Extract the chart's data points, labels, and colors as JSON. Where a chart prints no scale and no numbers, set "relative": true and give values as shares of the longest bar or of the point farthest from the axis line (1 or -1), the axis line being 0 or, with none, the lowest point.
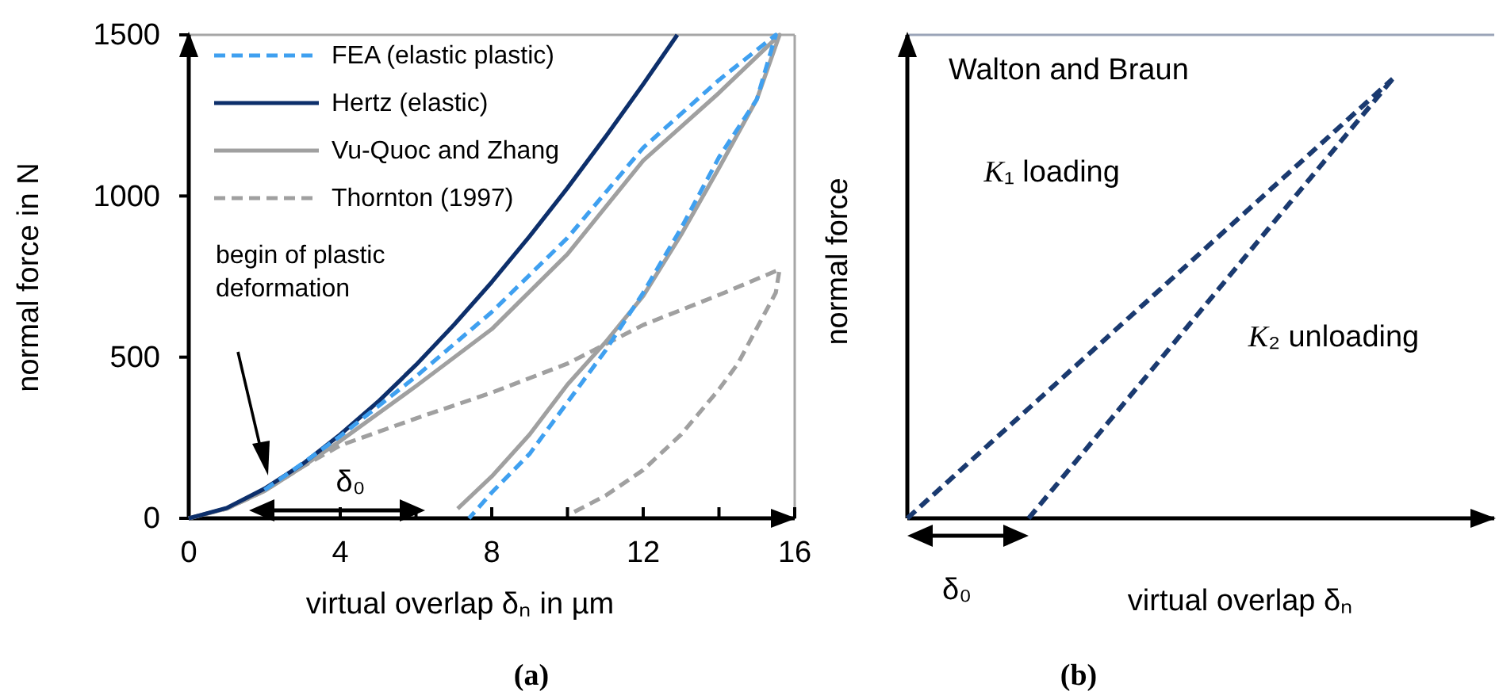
{
  "chart_data": [
    {
      "type": "line",
      "xlabel": "virtual overlap δₙ in µm",
      "ylabel": "normal force in N",
      "xlim": [
        0,
        16
      ],
      "ylim": [
        0,
        1500
      ],
      "xticks": [
        0,
        {
          "value": 2,
          "label": null
        },
        4,
        {
          "value": 6,
          "label": null
        },
        8,
        {
          "value": 10,
          "label": null
        },
        12,
        {
          "value": 14,
          "label": null
        },
        16
      ],
      "yticks": [
        0,
        500,
        1000,
        1500
      ],
      "grid": false,
      "legend": "top left",
      "marker": "none",
      "series": [
        {
          "name": "FEA (elastic plastic)",
          "color": "#3fa0f0",
          "line_style": "dashed",
          "x": [
            2,
            3,
            4,
            6,
            8,
            10,
            12,
            14,
            15.5,
            15,
            14,
            13,
            12,
            11,
            10,
            9,
            8,
            7.4
          ],
          "values": [
            88,
            170,
            255,
            440,
            640,
            870,
            1150,
            1360,
            1500,
            1300,
            1120,
            900,
            700,
            520,
            360,
            200,
            80,
            0
          ]
        },
        {
          "name": "Hertz (elastic)",
          "color": "#0d2f6b",
          "line_style": "solid",
          "x": [
            0,
            1,
            2,
            3,
            4,
            5,
            6,
            7,
            8,
            9,
            10,
            11,
            12,
            12.9
          ],
          "values": [
            0,
            32,
            92,
            168,
            260,
            362,
            476,
            600,
            733,
            875,
            1025,
            1183,
            1347,
            1500
          ]
        },
        {
          "name": "Vu-Quoc and Zhang",
          "color": "#a0a0a0",
          "line_style": "solid",
          "x": [
            0,
            1,
            2,
            3,
            4,
            6,
            8,
            10,
            12,
            14,
            15.6,
            15,
            14,
            13,
            12,
            11,
            10,
            9,
            8,
            7.1
          ],
          "values": [
            0,
            30,
            85,
            160,
            240,
            410,
            587,
            820,
            1110,
            1320,
            1500,
            1300,
            1087,
            880,
            690,
            546,
            415,
            260,
            130,
            30
          ]
        },
        {
          "name": "Thornton (1997)",
          "color": "#a0a0a0",
          "line_style": "dashed",
          "x": [
            0,
            1,
            2,
            3,
            4,
            6,
            8,
            10,
            12,
            14,
            15.6,
            15.5,
            15,
            14.5,
            14,
            13,
            12,
            11,
            10.1
          ],
          "values": [
            0,
            30,
            85,
            160,
            226,
            310,
            390,
            480,
            600,
            693,
            772,
            700,
            590,
            480,
            400,
            260,
            150,
            70,
            15
          ]
        }
      ],
      "annotations": [
        "begin of plastic deformation",
        "δ₀",
        "(a)"
      ]
    },
    {
      "type": "line",
      "relative": true,
      "title": "Walton and Braun",
      "xlabel": "virtual overlap δₙ",
      "ylabel": "normal force",
      "tick_labels": false,
      "grid": false,
      "legend": false,
      "marker": "none",
      "categories": [
        null,
        null,
        null,
        null,
        null
      ],
      "series": [
        {
          "color": "#1a3a70",
          "line_style": "dashed",
          "values": [
            0,
            0.25,
            0.5,
            0.75,
            1
          ]
        },
        {
          "color": "#1a3a70",
          "line_style": "dashed",
          "values": [
            null,
            0,
            0.333,
            0.667,
            1
          ]
        }
      ],
      "annotations": [
        "K₁ loading",
        "K₂ unloading",
        "δ₀",
        "(b)"
      ]
    }
  ]
}
